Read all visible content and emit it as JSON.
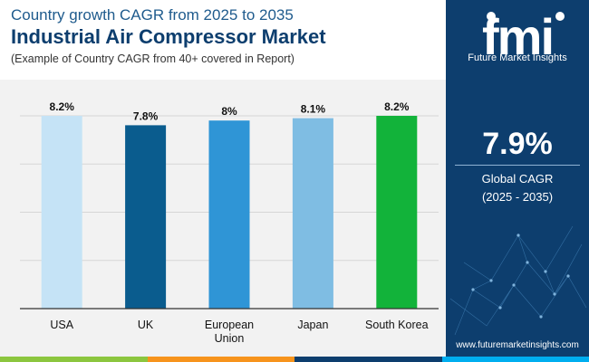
{
  "header": {
    "subtitle": "Country growth CAGR from 2025 to 2035",
    "title": "Industrial Air Compressor Market",
    "note": "(Example of Country CAGR from 40+ covered in Report)"
  },
  "sidebar": {
    "logo_text": "fmi",
    "logo_subtext": "Future Market Insights",
    "cagr_value": "7.9%",
    "cagr_label": "Global CAGR",
    "cagr_period": "(2025 - 2035)",
    "url": "www.futuremarketinsights.com"
  },
  "colors": {
    "bottom_bar": [
      "#8cc63f",
      "#f7941d",
      "#0d3e6e",
      "#00aeef"
    ]
  },
  "chart_data": {
    "type": "bar",
    "title": "Industrial Air Compressor Market",
    "categories": [
      [
        "USA"
      ],
      [
        "UK"
      ],
      [
        "European",
        "Union"
      ],
      [
        "Japan"
      ],
      [
        "South Korea"
      ]
    ],
    "values": [
      8.2,
      7.8,
      8.0,
      8.1,
      8.2
    ],
    "labels": [
      "8.2%",
      "7.8%",
      "8%",
      "8.1%",
      "8.2%"
    ],
    "colors": [
      "#c5e3f6",
      "#0a5c8e",
      "#2f95d6",
      "#7fbde3",
      "#12b33a"
    ],
    "ylim": [
      0,
      8.2
    ],
    "gridlines": 4,
    "xlabel": "",
    "ylabel": ""
  }
}
